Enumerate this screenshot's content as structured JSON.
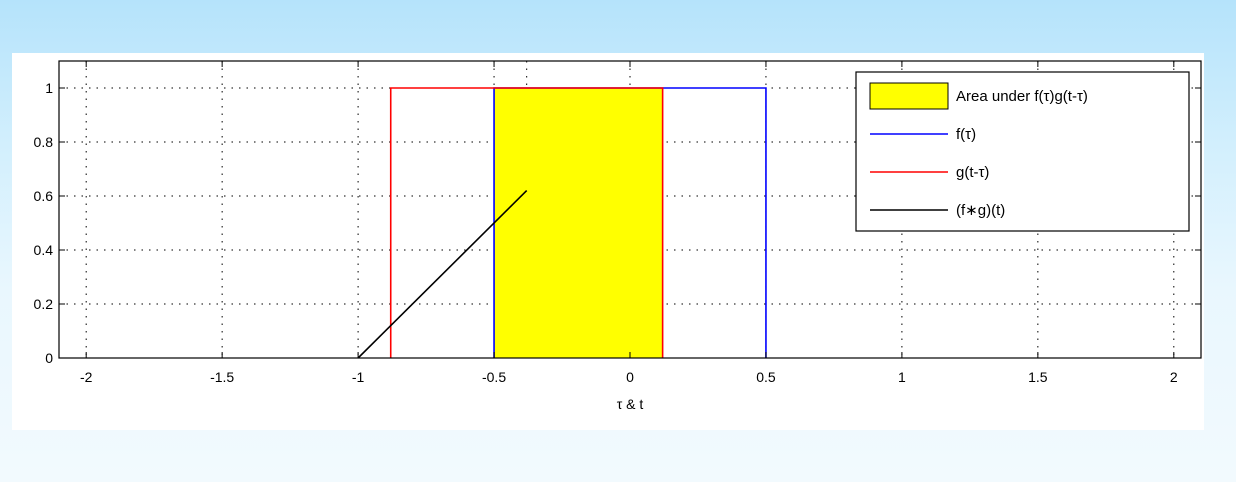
{
  "chart_data": {
    "type": "line",
    "xlabel": "τ & t",
    "ylabel": "",
    "title": "",
    "xlim": [
      -2.1,
      2.1
    ],
    "ylim": [
      0,
      1.1
    ],
    "xticks": [
      -2,
      -1.5,
      -1,
      -0.5,
      0,
      0.5,
      1,
      1.5,
      2
    ],
    "xtick_labels": [
      "-2",
      "-1.5",
      "-1",
      "-0.5",
      "0",
      "0.5",
      "1",
      "1.5",
      "2"
    ],
    "yticks": [
      0,
      0.2,
      0.4,
      0.6,
      0.8,
      1
    ],
    "ytick_labels": [
      "0",
      "0.2",
      "0.4",
      "0.6",
      "0.8",
      "1"
    ],
    "grid": true,
    "legend_position": "top-right",
    "current_t": -0.38,
    "series": [
      {
        "name": "Area under f(τ)g(t-τ)",
        "kind": "area",
        "color": "#ffff00",
        "x": [
          -0.5,
          -0.5,
          0.12,
          0.12
        ],
        "y": [
          0,
          1,
          1,
          0
        ]
      },
      {
        "name": "f(τ)",
        "kind": "line",
        "color": "#0000ff",
        "x": [
          -0.5,
          -0.5,
          0.5,
          0.5
        ],
        "y": [
          0,
          1,
          1,
          0
        ]
      },
      {
        "name": "g(t-τ)",
        "kind": "line",
        "color": "#ff0000",
        "x": [
          -0.88,
          -0.88,
          0.12,
          0.12
        ],
        "y": [
          0,
          1,
          1,
          0
        ]
      },
      {
        "name": "(f∗g)(t)",
        "kind": "line",
        "color": "#000000",
        "x": [
          -1,
          -0.38
        ],
        "y": [
          0,
          0.62
        ]
      }
    ]
  }
}
